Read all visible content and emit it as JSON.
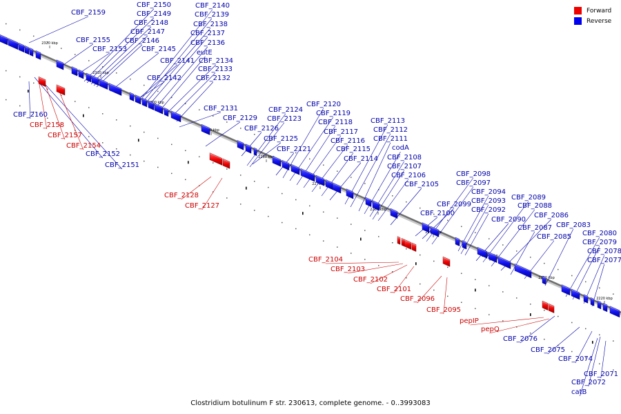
{
  "legend": {
    "forward_label": "Forward",
    "reverse_label": "Reverse",
    "forward_color": "#ee0000",
    "reverse_color": "#0000ee"
  },
  "caption": "Clostridium botulinum F str. 230613, complete genome. - 0..3993083",
  "scale_ticks": [
    "2320 kbp",
    "2310 kbp",
    "2300 kbp",
    "2290 kbp",
    "2280 kbp",
    "2270 kbp",
    "2260 kbp",
    "2250 kbp",
    "2240 kbp",
    "2230 kbp",
    "2220 kbp"
  ],
  "reverse_labels": [
    "CBF_2159",
    "CBF_2150",
    "CBF_2149",
    "CBF_2148",
    "CBF_2147",
    "CBF_2146",
    "CBF_2145",
    "CBF_2155",
    "CBF_2153",
    "CBF_2140",
    "CBF_2139",
    "CBF_2138",
    "CBF_2137",
    "CBF_2136",
    "eutE",
    "CBF_2134",
    "CBF_2133",
    "CBF_2132",
    "CBF_2141",
    "CBF_2142",
    "CBF_2160",
    "CBF_2152",
    "CBF_2151",
    "CBF_2131",
    "CBF_2129",
    "CBF_2126",
    "CBF_2125",
    "CBF_2124",
    "CBF_2123",
    "CBF_2121",
    "CBF_2120",
    "CBF_2119",
    "CBF_2118",
    "CBF_2117",
    "CBF_2116",
    "CBF_2115",
    "CBF_2114",
    "CBF_2113",
    "CBF_2112",
    "CBF_2111",
    "codA",
    "CBF_2108",
    "CBF_2107",
    "CBF_2106",
    "CBF_2105",
    "CBF_2098",
    "CBF_2097",
    "CBF_2094",
    "CBF_2093",
    "CBF_2092",
    "CBF_2099",
    "CBF_2100",
    "CBF_2089",
    "CBF_2088",
    "CBF_2086",
    "CBF_2090",
    "CBF_2087",
    "CBF_2085",
    "CBF_2083",
    "CBF_2080",
    "CBF_2079",
    "CBF_2078",
    "CBF_2077",
    "CBF_2076",
    "CBF_2075",
    "CBF_2074",
    "CBF_2071",
    "CBF_2072",
    "catB"
  ],
  "forward_labels": [
    "CBF_2158",
    "CBF_2157",
    "CBF_2154",
    "CBF_2128",
    "CBF_2127",
    "CBF_2104",
    "CBF_2103",
    "CBF_2102",
    "CBF_2101",
    "CBF_2096",
    "CBF_2095",
    "pepIP",
    "pepQ"
  ]
}
